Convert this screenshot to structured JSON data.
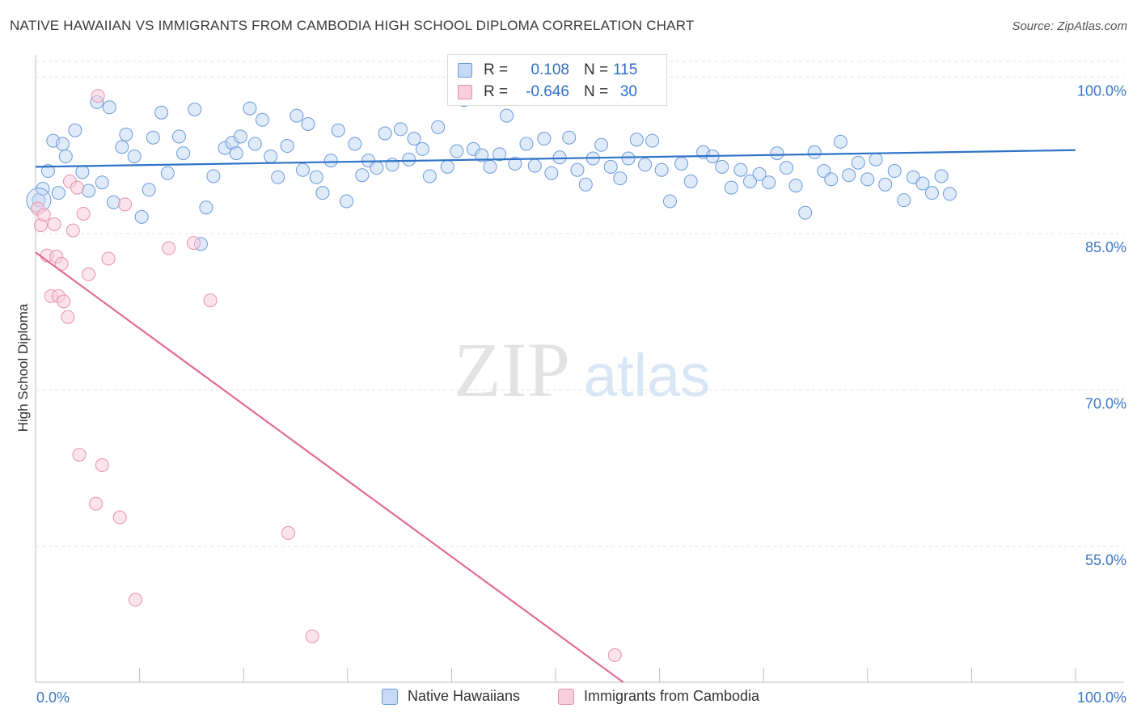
{
  "title": "NATIVE HAWAIIAN VS IMMIGRANTS FROM CAMBODIA HIGH SCHOOL DIPLOMA CORRELATION CHART",
  "source": "Source: ZipAtlas.com",
  "watermark": {
    "zip": "ZIP",
    "atlas": "atlas"
  },
  "colors": {
    "blue_fill": "#c6daf5",
    "blue_stroke": "#6a9ad8",
    "blue_line": "#2f73c9",
    "pink_fill": "#f7cedb",
    "pink_stroke": "#e891ad",
    "pink_line": "#e26b96",
    "tick_label": "#3d78c9",
    "grid": "#e3e3e3"
  },
  "legend_top": {
    "rows": [
      {
        "r_label": "R =",
        "r_value": "0.108",
        "n_label": "N =",
        "n_value": "115",
        "series": "blue"
      },
      {
        "r_label": "R =",
        "r_value": "-0.646",
        "n_label": "N =",
        "n_value": "30",
        "series": "pink"
      }
    ]
  },
  "legend_bottom": {
    "items": [
      {
        "label": "Native Hawaiians",
        "series": "blue"
      },
      {
        "label": "Immigrants from Cambodia",
        "series": "pink"
      }
    ]
  },
  "chart_data": {
    "type": "scatter",
    "title": "NATIVE HAWAIIAN VS IMMIGRANTS FROM CAMBODIA HIGH SCHOOL DIPLOMA CORRELATION CHART",
    "xlabel": "",
    "ylabel": "High School Diploma",
    "xlim": [
      0,
      100
    ],
    "ylim": [
      42,
      101.5
    ],
    "x_tick_labels": [
      "0.0%",
      "100.0%"
    ],
    "y_ticks": [
      {
        "value": 55,
        "label": "55.0%"
      },
      {
        "value": 70,
        "label": "70.0%"
      },
      {
        "value": 85,
        "label": "85.0%"
      },
      {
        "value": 100,
        "label": "100.0%"
      }
    ],
    "grid": true,
    "legend_position": "bottom",
    "series": [
      {
        "name": "Native Hawaiians",
        "color": "#6a9ad8",
        "trend": {
          "x": [
            0,
            100
          ],
          "y": [
            91.4,
            93.0
          ]
        },
        "points": [
          [
            0.3,
            88.2
          ],
          [
            0.7,
            89.3
          ],
          [
            1.2,
            91.0
          ],
          [
            1.7,
            93.9
          ],
          [
            2.2,
            88.9
          ],
          [
            2.6,
            93.6
          ],
          [
            2.9,
            92.4
          ],
          [
            3.8,
            94.9
          ],
          [
            4.5,
            90.9
          ],
          [
            5.1,
            89.1
          ],
          [
            5.9,
            97.6
          ],
          [
            6.4,
            89.9
          ],
          [
            7.1,
            97.1
          ],
          [
            7.5,
            88.0
          ],
          [
            8.3,
            93.3
          ],
          [
            8.7,
            94.5
          ],
          [
            9.5,
            92.4
          ],
          [
            10.2,
            86.6
          ],
          [
            10.9,
            89.2
          ],
          [
            11.3,
            94.2
          ],
          [
            12.1,
            96.6
          ],
          [
            12.7,
            90.8
          ],
          [
            13.8,
            94.3
          ],
          [
            14.2,
            92.7
          ],
          [
            15.3,
            96.9
          ],
          [
            15.9,
            84.0
          ],
          [
            16.4,
            87.5
          ],
          [
            17.1,
            90.5
          ],
          [
            18.2,
            93.2
          ],
          [
            18.9,
            93.7
          ],
          [
            19.3,
            92.7
          ],
          [
            19.7,
            94.3
          ],
          [
            20.6,
            97.0
          ],
          [
            21.1,
            93.6
          ],
          [
            21.8,
            95.9
          ],
          [
            22.6,
            92.4
          ],
          [
            23.3,
            90.4
          ],
          [
            24.2,
            93.4
          ],
          [
            25.1,
            96.3
          ],
          [
            25.7,
            91.1
          ],
          [
            26.2,
            95.5
          ],
          [
            27.0,
            90.4
          ],
          [
            27.6,
            88.9
          ],
          [
            28.4,
            92.0
          ],
          [
            29.1,
            94.9
          ],
          [
            29.9,
            88.1
          ],
          [
            30.7,
            93.6
          ],
          [
            31.4,
            90.6
          ],
          [
            32.0,
            92.0
          ],
          [
            32.8,
            91.3
          ],
          [
            33.6,
            94.6
          ],
          [
            34.3,
            91.6
          ],
          [
            35.1,
            95.0
          ],
          [
            35.9,
            92.1
          ],
          [
            36.4,
            94.1
          ],
          [
            37.2,
            93.1
          ],
          [
            37.9,
            90.5
          ],
          [
            38.7,
            95.2
          ],
          [
            39.6,
            91.4
          ],
          [
            40.5,
            92.9
          ],
          [
            41.2,
            97.8
          ],
          [
            42.1,
            93.1
          ],
          [
            42.9,
            92.5
          ],
          [
            43.7,
            91.4
          ],
          [
            44.6,
            92.6
          ],
          [
            45.3,
            96.3
          ],
          [
            46.1,
            91.7
          ],
          [
            47.2,
            93.6
          ],
          [
            48.0,
            91.5
          ],
          [
            48.9,
            94.1
          ],
          [
            49.6,
            90.8
          ],
          [
            50.4,
            92.3
          ],
          [
            51.3,
            94.2
          ],
          [
            52.1,
            91.1
          ],
          [
            52.9,
            89.7
          ],
          [
            53.6,
            92.2
          ],
          [
            54.4,
            93.5
          ],
          [
            55.3,
            91.4
          ],
          [
            56.2,
            90.3
          ],
          [
            57.0,
            92.2
          ],
          [
            57.8,
            94.0
          ],
          [
            58.6,
            91.6
          ],
          [
            59.3,
            93.9
          ],
          [
            60.2,
            91.1
          ],
          [
            61.0,
            88.1
          ],
          [
            62.1,
            91.7
          ],
          [
            63.0,
            90.0
          ],
          [
            64.2,
            92.8
          ],
          [
            65.1,
            92.4
          ],
          [
            66.0,
            91.4
          ],
          [
            66.9,
            89.4
          ],
          [
            67.8,
            91.1
          ],
          [
            68.7,
            90.0
          ],
          [
            69.6,
            90.7
          ],
          [
            70.5,
            89.9
          ],
          [
            71.3,
            92.7
          ],
          [
            72.2,
            91.3
          ],
          [
            73.1,
            89.6
          ],
          [
            74.0,
            87.0
          ],
          [
            74.9,
            92.8
          ],
          [
            75.8,
            91.0
          ],
          [
            76.5,
            90.2
          ],
          [
            77.4,
            93.8
          ],
          [
            78.2,
            90.6
          ],
          [
            79.1,
            91.8
          ],
          [
            80.0,
            90.2
          ],
          [
            80.8,
            92.1
          ],
          [
            81.7,
            89.7
          ],
          [
            82.6,
            91.0
          ],
          [
            83.5,
            88.2
          ],
          [
            84.4,
            90.4
          ],
          [
            85.3,
            89.8
          ],
          [
            86.2,
            88.9
          ],
          [
            87.1,
            90.5
          ],
          [
            87.9,
            88.8
          ]
        ]
      },
      {
        "name": "Immigrants from Cambodia",
        "color": "#e891ad",
        "trend": {
          "x": [
            0,
            56.5
          ],
          "y": [
            83.2,
            42
          ]
        },
        "points": [
          [
            0.2,
            87.4
          ],
          [
            0.5,
            85.8
          ],
          [
            0.8,
            86.8
          ],
          [
            1.1,
            82.9
          ],
          [
            1.5,
            79.0
          ],
          [
            1.8,
            85.9
          ],
          [
            2.0,
            82.8
          ],
          [
            2.2,
            79.0
          ],
          [
            2.5,
            82.1
          ],
          [
            2.7,
            78.5
          ],
          [
            3.1,
            77.0
          ],
          [
            3.3,
            90.0
          ],
          [
            3.6,
            85.3
          ],
          [
            4.0,
            89.4
          ],
          [
            4.2,
            63.8
          ],
          [
            4.6,
            86.9
          ],
          [
            5.1,
            81.1
          ],
          [
            5.8,
            59.1
          ],
          [
            6.4,
            62.8
          ],
          [
            7.0,
            82.6
          ],
          [
            8.1,
            57.8
          ],
          [
            8.6,
            87.8
          ],
          [
            9.6,
            49.9
          ],
          [
            12.8,
            83.6
          ],
          [
            15.2,
            84.1
          ],
          [
            16.8,
            78.6
          ],
          [
            24.3,
            56.3
          ],
          [
            26.6,
            46.4
          ],
          [
            55.7,
            44.6
          ],
          [
            6.0,
            98.2
          ]
        ]
      }
    ]
  }
}
